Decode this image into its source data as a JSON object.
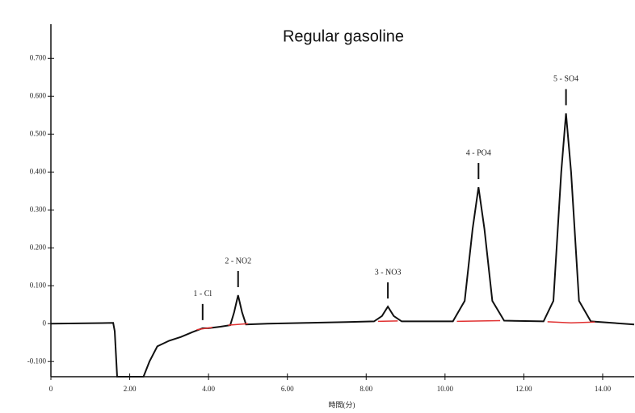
{
  "chart_data": {
    "type": "line",
    "title": "Regular gasoline",
    "x_label": "時間(分)",
    "xlim": [
      0,
      14.8
    ],
    "ylim": [
      -0.14,
      0.79
    ],
    "xticks": [
      0,
      {
        "value": 2,
        "label": "2.00"
      },
      {
        "value": 4,
        "label": "4.00"
      },
      {
        "value": 6,
        "label": "6.00"
      },
      {
        "value": 8,
        "label": "8.00"
      },
      {
        "value": 10,
        "label": "10.00"
      },
      {
        "value": 12,
        "label": "12.00"
      },
      {
        "value": 14,
        "label": "14.00"
      }
    ],
    "yticks": [
      {
        "value": -0.1,
        "label": "-0.100"
      },
      0,
      {
        "value": 0.1,
        "label": "0.100"
      },
      {
        "value": 0.2,
        "label": "0.200"
      },
      {
        "value": 0.3,
        "label": "0.300"
      },
      {
        "value": 0.4,
        "label": "0.400"
      },
      {
        "value": 0.5,
        "label": "0.500"
      },
      {
        "value": 0.6,
        "label": "0.600"
      },
      {
        "value": 0.7,
        "label": "0.700"
      }
    ],
    "series": [
      {
        "color": "#111111",
        "x": [
          0,
          1.58,
          1.62,
          1.68,
          2.35,
          2.5,
          2.7,
          3.0,
          3.3,
          3.6,
          3.85,
          4.0,
          4.3,
          4.55,
          4.65,
          4.75,
          4.85,
          4.95,
          5.5,
          6.5,
          7.5,
          8.2,
          8.4,
          8.55,
          8.7,
          8.9,
          10.2,
          10.5,
          10.7,
          10.85,
          11.0,
          11.2,
          11.5,
          12.5,
          12.75,
          12.95,
          13.07,
          13.2,
          13.4,
          13.7,
          14.8
        ],
        "values": [
          0,
          0.002,
          -0.02,
          -0.14,
          -0.14,
          -0.1,
          -0.06,
          -0.045,
          -0.035,
          -0.022,
          -0.012,
          -0.012,
          -0.008,
          -0.004,
          0.03,
          0.075,
          0.03,
          -0.002,
          0,
          0.002,
          0.004,
          0.006,
          0.02,
          0.045,
          0.02,
          0.006,
          0.006,
          0.06,
          0.25,
          0.36,
          0.25,
          0.06,
          0.008,
          0.006,
          0.06,
          0.4,
          0.555,
          0.4,
          0.06,
          0.006,
          -0.002
        ]
      },
      {
        "color": "#e03030",
        "x": [
          3.7,
          4.1,
          4.15,
          4.5,
          5.0,
          5.05,
          8.3,
          8.8,
          8.85,
          10.3,
          11.4,
          11.45,
          12.6,
          13.2,
          13.8
        ],
        "values": [
          -0.016,
          -0.01,
          null,
          -0.004,
          0,
          null,
          0.006,
          0.007,
          null,
          0.006,
          0.008,
          null,
          0.005,
          0.002,
          0.004
        ]
      }
    ],
    "annotations": [
      {
        "text": "1 - Cl",
        "x": 3.85,
        "y": -0.012
      },
      {
        "text": "2 - NO2",
        "x": 4.75,
        "y": 0.075
      },
      {
        "text": "3 - NO3",
        "x": 8.55,
        "y": 0.045
      },
      {
        "text": "4 - PO4",
        "x": 10.85,
        "y": 0.36
      },
      {
        "text": "5 - SO4",
        "x": 13.07,
        "y": 0.555
      }
    ]
  }
}
